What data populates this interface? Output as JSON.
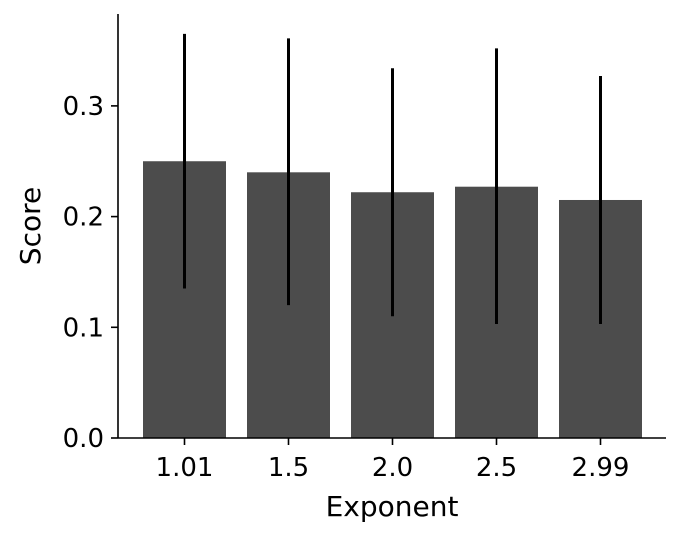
{
  "chart_data": {
    "type": "bar",
    "categories": [
      "1.01",
      "1.5",
      "2.0",
      "2.5",
      "2.99"
    ],
    "values": [
      0.25,
      0.24,
      0.222,
      0.227,
      0.215
    ],
    "error_low": [
      0.135,
      0.12,
      0.11,
      0.103,
      0.103
    ],
    "error_high": [
      0.365,
      0.361,
      0.334,
      0.352,
      0.327
    ],
    "xlabel": "Exponent",
    "ylabel": "Score",
    "ylim": [
      0,
      0.383
    ],
    "yticks": [
      0.0,
      0.1,
      0.2,
      0.3
    ],
    "ytick_labels": [
      "0.0",
      "0.1",
      "0.2",
      "0.3"
    ],
    "bar_color": "#4c4c4c",
    "error_color": "#000000",
    "grid": false
  }
}
